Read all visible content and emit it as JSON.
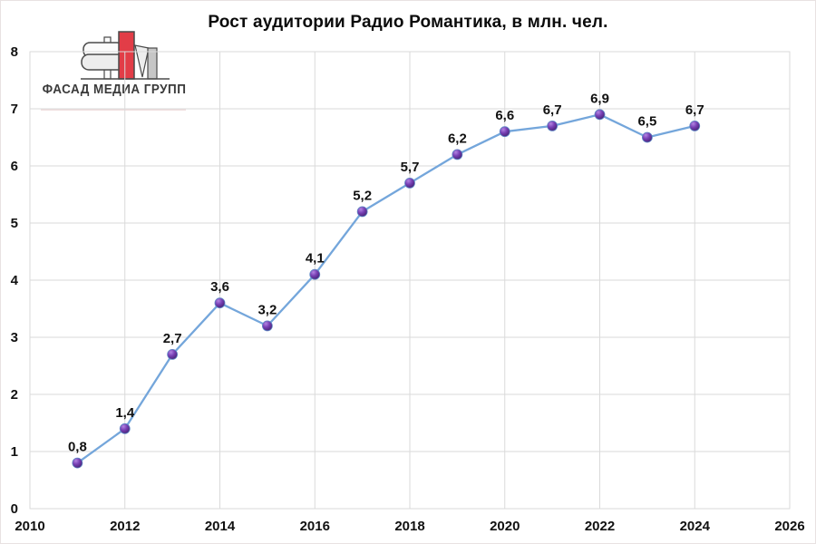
{
  "title": "Рост аудитории Радио Романтика, в млн. чел.",
  "logo": {
    "text": "ФАСАД МЕДИА ГРУПП",
    "red": "#E23D47",
    "gray": "#C6C6C6",
    "light_gray": "#EDEDED",
    "white": "#FBFBFB",
    "outline": "#4A4A4A",
    "text_color": "#3A3A3A"
  },
  "chart_data": {
    "type": "line",
    "title": "Рост аудитории Радио Романтика, в млн. чел.",
    "x": [
      2011,
      2012,
      2013,
      2014,
      2015,
      2016,
      2017,
      2018,
      2019,
      2020,
      2021,
      2022,
      2023,
      2024
    ],
    "values": [
      0.8,
      1.4,
      2.7,
      3.6,
      3.2,
      4.1,
      5.2,
      5.7,
      6.2,
      6.6,
      6.7,
      6.9,
      6.5,
      6.7
    ],
    "point_labels": [
      "0,8",
      "1,4",
      "2,7",
      "3,6",
      "3,2",
      "4,1",
      "5,2",
      "5,7",
      "6,2",
      "6,6",
      "6,7",
      "6,9",
      "6,5",
      "6,7"
    ],
    "xlim": [
      2010,
      2026
    ],
    "ylim": [
      0,
      8
    ],
    "x_ticks": [
      2010,
      2012,
      2014,
      2016,
      2018,
      2020,
      2022,
      2024,
      2026
    ],
    "y_ticks": [
      0,
      1,
      2,
      3,
      4,
      5,
      6,
      7,
      8
    ],
    "grid": true,
    "legend": "none",
    "xlabel": "",
    "ylabel": "",
    "colors": {
      "line": "#74A6DB",
      "marker_highlight": "#B285E2",
      "marker_mid": "#7840B5",
      "marker_dark": "#41206F",
      "marker_stroke": "#5E87C5",
      "grid": "#DADADA",
      "text": "#111111"
    }
  }
}
